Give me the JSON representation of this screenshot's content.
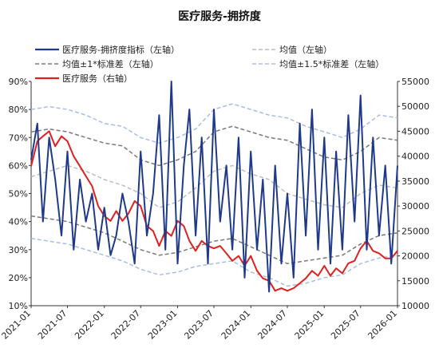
{
  "chart_data": {
    "type": "line",
    "title": "医疗服务-拥挤度",
    "legend_placement": "top",
    "x_ticks": [
      "2021-01",
      "2021-07",
      "2022-01",
      "2022-07",
      "2023-01",
      "2023-07",
      "2024-01",
      "2024-07",
      "2025-01",
      "2025-07",
      "2026-01"
    ],
    "y_left": {
      "ylim": [
        10,
        90
      ],
      "ticks": [
        "10%",
        "20%",
        "30%",
        "40%",
        "50%",
        "60%",
        "70%",
        "80%",
        "90%"
      ]
    },
    "y_right": {
      "ylim": [
        10000,
        55000
      ],
      "ticks": [
        "10000",
        "15000",
        "20000",
        "25000",
        "30000",
        "35000",
        "40000",
        "45000",
        "50000",
        "55000"
      ]
    },
    "grid": false,
    "series": [
      {
        "name": "医疗服务-拥挤度指标（左轴）",
        "axis": "left",
        "color": "#1f3a8a",
        "style": "solid",
        "x": [
          "2021-01",
          "2021-02",
          "2021-03",
          "2021-04",
          "2021-05",
          "2021-06",
          "2021-07",
          "2021-08",
          "2021-09",
          "2021-10",
          "2021-11",
          "2021-12",
          "2022-01",
          "2022-02",
          "2022-03",
          "2022-04",
          "2022-05",
          "2022-06",
          "2022-07",
          "2022-08",
          "2022-09",
          "2022-10",
          "2022-11",
          "2022-12",
          "2023-01",
          "2023-02",
          "2023-03",
          "2023-04",
          "2023-05",
          "2023-06",
          "2023-07",
          "2023-08",
          "2023-09",
          "2023-10",
          "2023-11",
          "2023-12",
          "2024-01",
          "2024-02",
          "2024-03",
          "2024-04",
          "2024-05",
          "2024-06",
          "2024-07",
          "2024-08",
          "2024-09",
          "2024-10",
          "2024-11",
          "2024-12",
          "2025-01",
          "2025-02",
          "2025-03",
          "2025-04",
          "2025-05",
          "2025-06",
          "2025-07",
          "2025-08",
          "2025-09",
          "2025-10",
          "2025-11",
          "2025-12",
          "2026-01"
        ],
        "values": [
          62,
          75,
          40,
          70,
          55,
          35,
          65,
          30,
          55,
          40,
          50,
          30,
          45,
          28,
          35,
          50,
          40,
          25,
          65,
          35,
          50,
          78,
          30,
          90,
          25,
          60,
          80,
          35,
          70,
          25,
          80,
          40,
          60,
          30,
          70,
          20,
          65,
          30,
          55,
          15,
          60,
          25,
          50,
          20,
          75,
          35,
          80,
          30,
          70,
          25,
          65,
          30,
          78,
          40,
          85,
          30,
          70,
          35,
          60,
          25,
          60
        ]
      },
      {
        "name": "均值（左轴）",
        "axis": "left",
        "color": "#bdbdbd",
        "style": "dashed",
        "x": [
          "2021-01",
          "2021-04",
          "2021-07",
          "2021-10",
          "2022-01",
          "2022-04",
          "2022-07",
          "2022-10",
          "2023-01",
          "2023-04",
          "2023-07",
          "2023-10",
          "2024-01",
          "2024-04",
          "2024-07",
          "2024-10",
          "2025-01",
          "2025-04",
          "2025-07",
          "2025-10",
          "2026-01"
        ],
        "values": [
          56,
          58,
          60,
          58,
          55,
          53,
          50,
          45,
          47,
          52,
          58,
          60,
          57,
          55,
          50,
          48,
          46,
          45,
          50,
          53,
          52
        ]
      },
      {
        "name": "均值±1*标准差（左轴）",
        "axis": "left",
        "color": "#7a7a7a",
        "style": "dashed",
        "x": [
          "2021-01",
          "2021-04",
          "2021-07",
          "2021-10",
          "2022-01",
          "2022-04",
          "2022-07",
          "2022-10",
          "2023-01",
          "2023-04",
          "2023-07",
          "2023-10",
          "2024-01",
          "2024-04",
          "2024-07",
          "2024-10",
          "2025-01",
          "2025-04",
          "2025-07",
          "2025-10",
          "2026-01"
        ],
        "upper": [
          72,
          73,
          72,
          70,
          68,
          67,
          62,
          60,
          62,
          65,
          72,
          74,
          72,
          70,
          69,
          66,
          63,
          62,
          65,
          70,
          69
        ],
        "lower": [
          42,
          41,
          40,
          38,
          36,
          33,
          30,
          28,
          29,
          31,
          33,
          34,
          31,
          28,
          25,
          26,
          27,
          28,
          32,
          35,
          36
        ]
      },
      {
        "name": "均值±1.5*标准差（左轴）",
        "axis": "left",
        "color": "#a9bde3",
        "style": "dashed",
        "x": [
          "2021-01",
          "2021-04",
          "2021-07",
          "2021-10",
          "2022-01",
          "2022-04",
          "2022-07",
          "2022-10",
          "2023-01",
          "2023-04",
          "2023-07",
          "2023-10",
          "2024-01",
          "2024-04",
          "2024-07",
          "2024-10",
          "2025-01",
          "2025-04",
          "2025-07",
          "2025-10",
          "2026-01"
        ],
        "upper": [
          80,
          81,
          80,
          78,
          75,
          74,
          70,
          68,
          70,
          73,
          80,
          82,
          80,
          78,
          77,
          74,
          72,
          70,
          73,
          78,
          77
        ],
        "lower": [
          34,
          33,
          32,
          30,
          28,
          26,
          23,
          21,
          22,
          24,
          25,
          26,
          22,
          20,
          17,
          18,
          20,
          21,
          25,
          27,
          28
        ]
      },
      {
        "name": "医疗服务（右轴）",
        "axis": "right",
        "color": "#e02020",
        "style": "solid",
        "x": [
          "2021-01",
          "2021-02",
          "2021-03",
          "2021-04",
          "2021-05",
          "2021-06",
          "2021-07",
          "2021-08",
          "2021-09",
          "2021-10",
          "2021-11",
          "2021-12",
          "2022-01",
          "2022-02",
          "2022-03",
          "2022-04",
          "2022-05",
          "2022-06",
          "2022-07",
          "2022-08",
          "2022-09",
          "2022-10",
          "2022-11",
          "2022-12",
          "2023-01",
          "2023-02",
          "2023-03",
          "2023-04",
          "2023-05",
          "2023-06",
          "2023-07",
          "2023-08",
          "2023-09",
          "2023-10",
          "2023-11",
          "2023-12",
          "2024-01",
          "2024-02",
          "2024-03",
          "2024-04",
          "2024-05",
          "2024-06",
          "2024-07",
          "2024-08",
          "2024-09",
          "2024-10",
          "2024-11",
          "2024-12",
          "2025-01",
          "2025-02",
          "2025-03",
          "2025-04",
          "2025-05",
          "2025-06",
          "2025-07",
          "2025-08",
          "2025-09",
          "2025-10",
          "2025-11",
          "2025-12",
          "2026-01"
        ],
        "values": [
          38000,
          43000,
          44000,
          45000,
          42000,
          44000,
          43000,
          40000,
          38000,
          36000,
          34000,
          30000,
          28000,
          27000,
          29000,
          27000,
          28500,
          31000,
          30000,
          26000,
          25000,
          22000,
          25000,
          24000,
          27000,
          26000,
          23000,
          21000,
          23000,
          22000,
          21500,
          22000,
          20500,
          19000,
          20000,
          18000,
          20000,
          17000,
          15500,
          15000,
          13000,
          13500,
          13000,
          13500,
          14500,
          15500,
          17000,
          16000,
          18000,
          16000,
          17500,
          16500,
          18500,
          19000,
          21500,
          23000,
          21000,
          20500,
          19500,
          19500,
          21000
        ]
      }
    ]
  }
}
